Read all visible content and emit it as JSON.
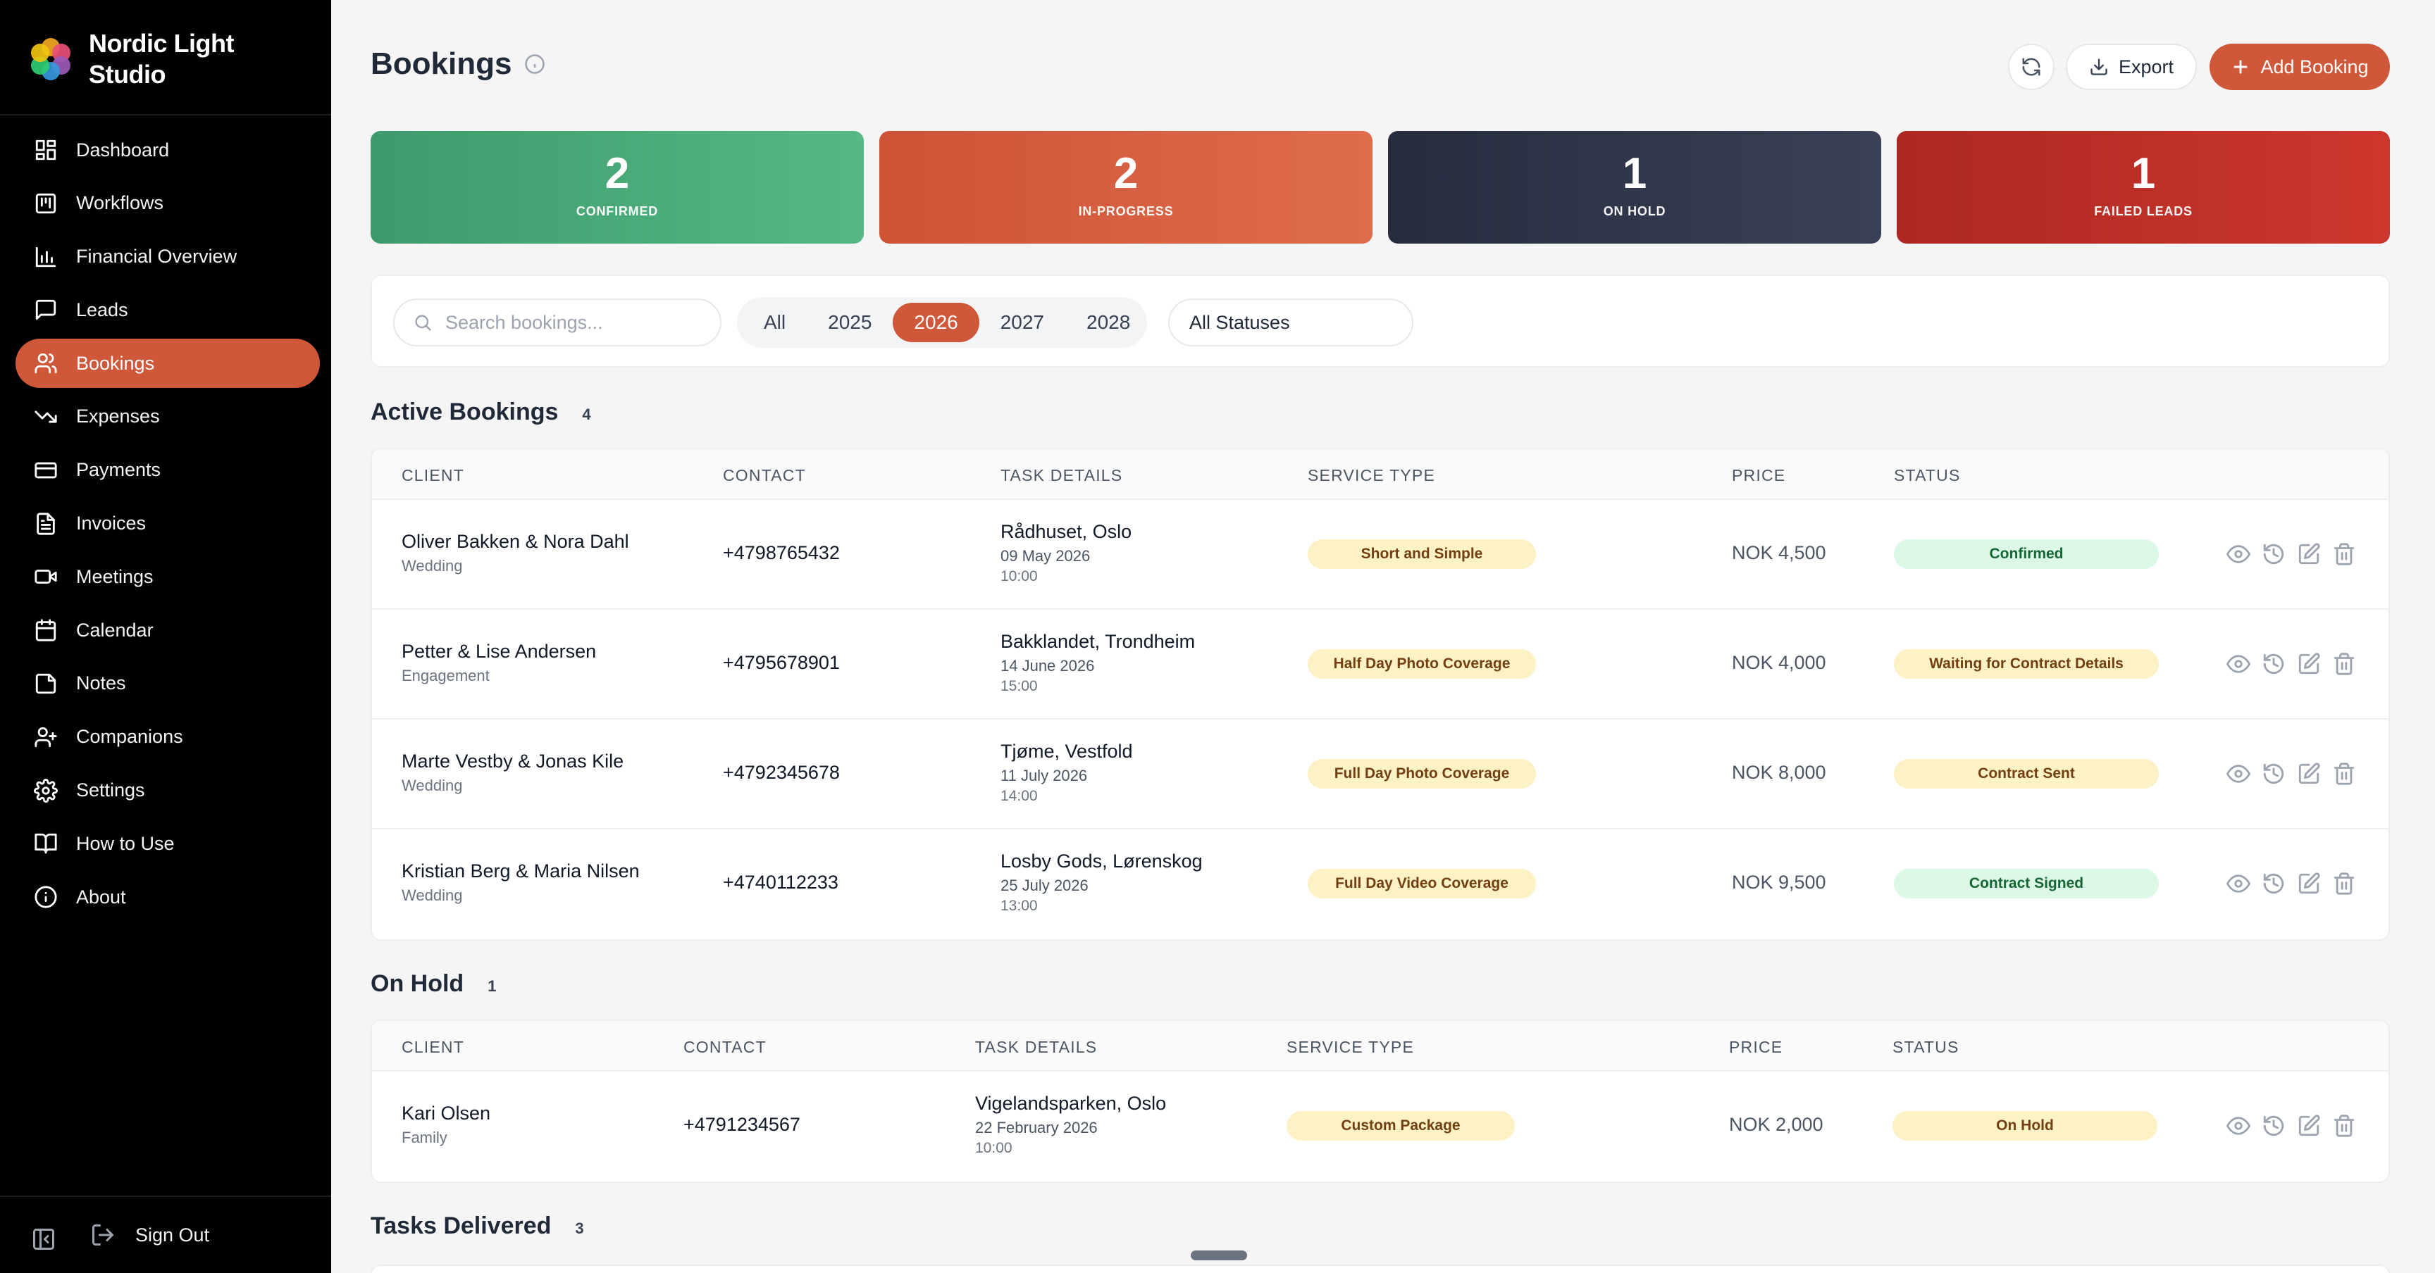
{
  "brand": {
    "line1": "Nordic Light",
    "line2": "Studio"
  },
  "sidebar": {
    "items": [
      {
        "label": "Dashboard",
        "icon": "dashboard-icon"
      },
      {
        "label": "Workflows",
        "icon": "kanban-icon"
      },
      {
        "label": "Financial Overview",
        "icon": "bar-chart-icon"
      },
      {
        "label": "Leads",
        "icon": "message-square-icon"
      },
      {
        "label": "Bookings",
        "icon": "users-icon",
        "active": true
      },
      {
        "label": "Expenses",
        "icon": "trending-down-icon"
      },
      {
        "label": "Payments",
        "icon": "credit-card-icon"
      },
      {
        "label": "Invoices",
        "icon": "file-text-icon"
      },
      {
        "label": "Meetings",
        "icon": "video-icon"
      },
      {
        "label": "Calendar",
        "icon": "calendar-icon"
      },
      {
        "label": "Notes",
        "icon": "sticky-note-icon"
      },
      {
        "label": "Companions",
        "icon": "user-plus-icon"
      },
      {
        "label": "Settings",
        "icon": "gear-icon"
      },
      {
        "label": "How to Use",
        "icon": "book-open-icon"
      },
      {
        "label": "About",
        "icon": "info-icon"
      }
    ],
    "signout_label": "Sign Out"
  },
  "header": {
    "title": "Bookings",
    "export_label": "Export",
    "add_label": "Add Booking"
  },
  "stats": [
    {
      "value": "2",
      "label": "CONFIRMED",
      "color": "#4caa78"
    },
    {
      "value": "2",
      "label": "IN-PROGRESS",
      "color": "#d65f40"
    },
    {
      "value": "1",
      "label": "ON HOLD",
      "color": "#2e3548"
    },
    {
      "value": "1",
      "label": "FAILED LEADS",
      "color": "#bf2f28"
    }
  ],
  "filters": {
    "search_placeholder": "Search bookings...",
    "years": [
      "All",
      "2025",
      "2026",
      "2027",
      "2028"
    ],
    "active_year": "2026",
    "status_value": "All Statuses"
  },
  "columns": [
    "CLIENT",
    "CONTACT",
    "TASK DETAILS",
    "SERVICE TYPE",
    "PRICE",
    "STATUS"
  ],
  "active": {
    "title": "Active Bookings",
    "count": "4",
    "rows": [
      {
        "client": "Oliver Bakken & Nora Dahl",
        "type": "Wedding",
        "contact": "+4798765432",
        "location": "Rådhuset, Oslo",
        "date": "09 May 2026",
        "time": "10:00",
        "service": "Short and Simple",
        "price": "NOK 4,500",
        "status": "Confirmed",
        "status_kind": "green"
      },
      {
        "client": "Petter & Lise Andersen",
        "type": "Engagement",
        "contact": "+4795678901",
        "location": "Bakklandet, Trondheim",
        "date": "14 June 2026",
        "time": "15:00",
        "service": "Half Day Photo Coverage",
        "price": "NOK 4,000",
        "status": "Waiting for Contract Details",
        "status_kind": "yellow"
      },
      {
        "client": "Marte Vestby & Jonas Kile",
        "type": "Wedding",
        "contact": "+4792345678",
        "location": "Tjøme, Vestfold",
        "date": "11 July 2026",
        "time": "14:00",
        "service": "Full Day Photo Coverage",
        "price": "NOK 8,000",
        "status": "Contract Sent",
        "status_kind": "yellow"
      },
      {
        "client": "Kristian Berg & Maria Nilsen",
        "type": "Wedding",
        "contact": "+4740112233",
        "location": "Losby Gods, Lørenskog",
        "date": "25 July 2026",
        "time": "13:00",
        "service": "Full Day Video Coverage",
        "price": "NOK 9,500",
        "status": "Contract Signed",
        "status_kind": "green"
      }
    ]
  },
  "onhold": {
    "title": "On Hold",
    "count": "1",
    "rows": [
      {
        "client": "Kari Olsen",
        "type": "Family",
        "contact": "+4791234567",
        "location": "Vigelandsparken, Oslo",
        "date": "22 February 2026",
        "time": "10:00",
        "service": "Custom Package",
        "price": "NOK 2,000",
        "status": "On Hold",
        "status_kind": "yellow"
      }
    ]
  },
  "delivered": {
    "title": "Tasks Delivered",
    "count": "3"
  },
  "accent": "#cf573a"
}
